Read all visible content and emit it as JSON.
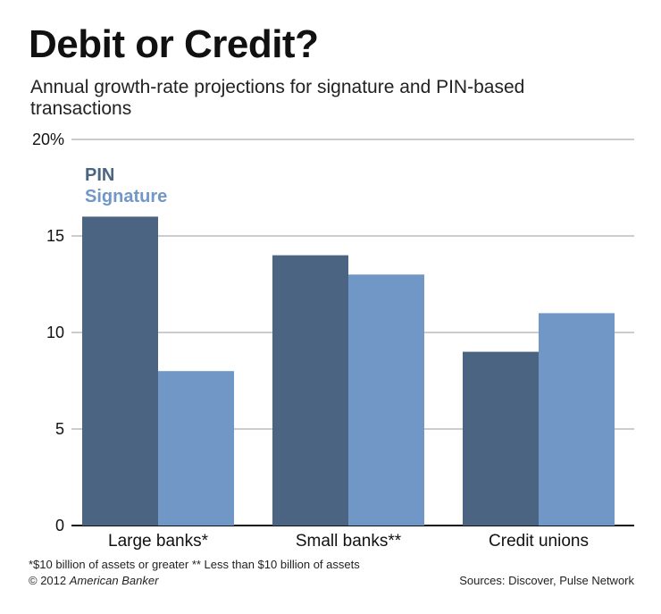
{
  "header": {
    "title": "Debit or Credit?",
    "subtitle": "Annual growth-rate projections for signature and PIN-based transactions"
  },
  "chart_data": {
    "type": "bar",
    "title": "Debit or Credit?",
    "subtitle": "Annual growth-rate projections for signature and PIN-based transactions",
    "categories": [
      "Large banks*",
      "Small banks**",
      "Credit unions"
    ],
    "series": [
      {
        "name": "PIN",
        "color": "#4a6482",
        "values": [
          16,
          14,
          9
        ]
      },
      {
        "name": "Signature",
        "color": "#7097c6",
        "values": [
          8,
          13,
          11
        ]
      }
    ],
    "xlabel": "",
    "ylabel": "",
    "ylim": [
      0,
      20
    ],
    "yticks": [
      0,
      5,
      10,
      15,
      20
    ],
    "ytick_labels": [
      "0",
      "5",
      "10",
      "15",
      "20%"
    ],
    "grid": true,
    "legend_position": "top-left"
  },
  "footer": {
    "footnote": "*$10 billion of assets or greater ** Less than $10 billion of assets",
    "copyright_prefix": "© 2012 ",
    "copyright_name": "American Banker",
    "sources": "Sources: Discover, Pulse Network"
  }
}
